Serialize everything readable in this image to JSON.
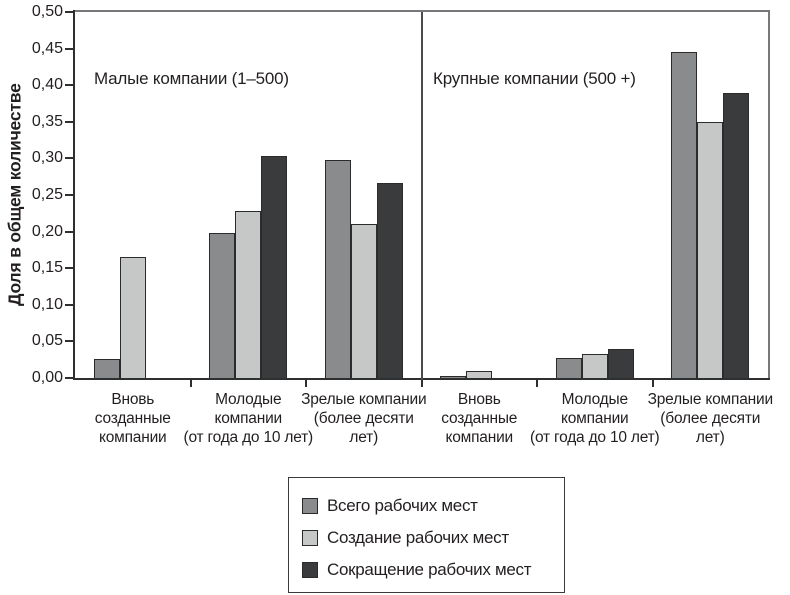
{
  "chart_data": {
    "type": "bar",
    "ylabel": "Доля в общем количестве",
    "ylim": [
      0,
      0.5
    ],
    "ytick_step": 0.05,
    "ytick_labels": [
      "0,00",
      "0,05",
      "0,10",
      "0,15",
      "0,20",
      "0,25",
      "0,30",
      "0,35",
      "0,40",
      "0,45",
      "0,50"
    ],
    "grid": false,
    "legend_position": "bottom",
    "sections": [
      {
        "title": "Малые компании (1–500)",
        "categories": [
          {
            "label": "Вновь созданные компании",
            "label_lines": [
              "Вновь",
              "созданные",
              "компании"
            ]
          },
          {
            "label": "Молодые компании (от года до 10 лет)",
            "label_lines": [
              "Молодые",
              "компании",
              "(от года до 10 лет)"
            ]
          },
          {
            "label": "Зрелые компании (более десяти лет)",
            "label_lines": [
              "Зрелые компании",
              "(более десяти",
              "лет)"
            ]
          }
        ],
        "series": [
          {
            "name": "Всего рабочих мест",
            "key": "total",
            "values": [
              0.026,
              0.198,
              0.298
            ]
          },
          {
            "name": "Создание рабочих мест",
            "key": "creation",
            "values": [
              0.165,
              0.228,
              0.21
            ]
          },
          {
            "name": "Сокращение рабочих мест",
            "key": "reduction",
            "values": [
              0,
              0.303,
              0.267
            ]
          }
        ]
      },
      {
        "title": "Крупные компании (500 +)",
        "categories": [
          {
            "label": "Вновь созданные компании",
            "label_lines": [
              "Вновь",
              "созданные",
              "компании"
            ]
          },
          {
            "label": "Молодые компании (от года до 10 лет)",
            "label_lines": [
              "Молодые",
              "компании",
              "(от года до 10 лет)"
            ]
          },
          {
            "label": "Зрелые компании (более десяти лет)",
            "label_lines": [
              "Зрелые компании",
              "(более десяти",
              "лет)"
            ]
          }
        ],
        "series": [
          {
            "name": "Всего рабочих мест",
            "key": "total",
            "values": [
              0.002,
              0.027,
              0.445
            ]
          },
          {
            "name": "Создание рабочих мест",
            "key": "creation",
            "values": [
              0.01,
              0.033,
              0.35
            ]
          },
          {
            "name": "Сокращение рабочих мест",
            "key": "reduction",
            "values": [
              0,
              0.04,
              0.39
            ]
          }
        ]
      }
    ],
    "legend": [
      {
        "label": "Всего рабочих мест",
        "key": "total",
        "color": "#8a8b8d"
      },
      {
        "label": "Создание рабочих мест",
        "key": "creation",
        "color": "#c5c8c7"
      },
      {
        "label": "Сокращение рабочих мест",
        "key": "reduction",
        "color": "#3a3b3d"
      }
    ],
    "colors": {
      "bar_border": "#2b2b2b",
      "axis": "#2e2f31",
      "frame": "#77787b",
      "text": "#231f20"
    }
  }
}
